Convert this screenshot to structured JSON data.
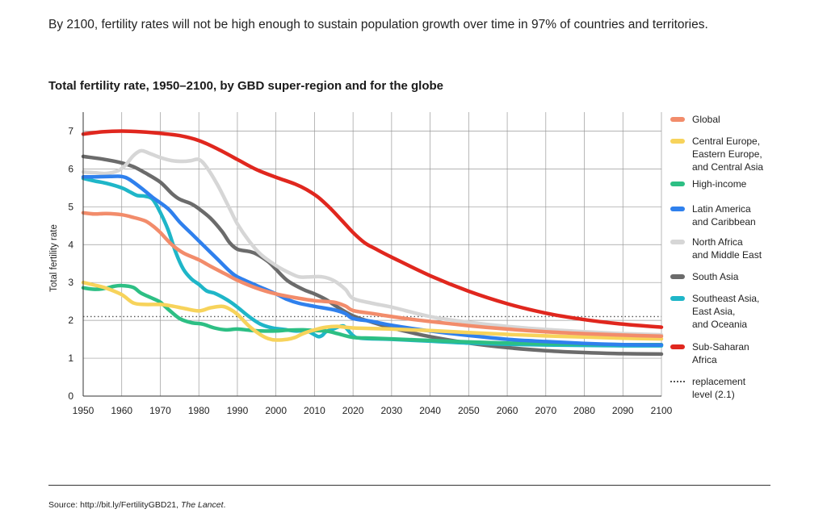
{
  "headline": "By 2100, fertility rates will not be high enough to sustain population growth over time in 97% of countries and territories.",
  "source": {
    "prefix": "Source: http://bit.ly/FertilityGBD21, ",
    "journal": "The Lancet",
    "suffix": "."
  },
  "chart_data": {
    "type": "line",
    "title": "Total fertility rate, 1950–2100, by GBD super-region and for the globe",
    "xlabel": "",
    "ylabel": "Total fertility rate",
    "xlim": [
      1950,
      2100
    ],
    "ylim": [
      0,
      7.5
    ],
    "x_ticks": [
      1950,
      1960,
      1970,
      1980,
      1990,
      2000,
      2010,
      2020,
      2030,
      2040,
      2050,
      2060,
      2070,
      2080,
      2090,
      2100
    ],
    "y_ticks": [
      0,
      1,
      2,
      3,
      4,
      5,
      6,
      7
    ],
    "grid": true,
    "legend_position": "right",
    "reference_line": {
      "y": 2.1,
      "label": "replacement\nlevel (2.1)",
      "style": "dotted",
      "color": "#555555"
    },
    "series": [
      {
        "name": "Global",
        "color": "#f28c6b",
        "points": [
          [
            1950,
            4.84
          ],
          [
            1953,
            4.81
          ],
          [
            1956,
            4.82
          ],
          [
            1960,
            4.79
          ],
          [
            1963,
            4.72
          ],
          [
            1966,
            4.63
          ],
          [
            1968,
            4.5
          ],
          [
            1970,
            4.32
          ],
          [
            1973,
            4.0
          ],
          [
            1976,
            3.78
          ],
          [
            1980,
            3.6
          ],
          [
            1983,
            3.43
          ],
          [
            1987,
            3.22
          ],
          [
            1990,
            3.06
          ],
          [
            1995,
            2.85
          ],
          [
            2000,
            2.7
          ],
          [
            2005,
            2.6
          ],
          [
            2010,
            2.52
          ],
          [
            2015,
            2.48
          ],
          [
            2018,
            2.38
          ],
          [
            2020,
            2.26
          ],
          [
            2025,
            2.18
          ],
          [
            2030,
            2.1
          ],
          [
            2035,
            2.03
          ],
          [
            2040,
            1.97
          ],
          [
            2050,
            1.86
          ],
          [
            2060,
            1.77
          ],
          [
            2070,
            1.7
          ],
          [
            2080,
            1.65
          ],
          [
            2090,
            1.61
          ],
          [
            2100,
            1.58
          ]
        ]
      },
      {
        "name": "Central Europe,\nEastern Europe,\nand Central Asia",
        "color": "#f7d35b",
        "points": [
          [
            1950,
            3.0
          ],
          [
            1953,
            2.93
          ],
          [
            1956,
            2.85
          ],
          [
            1960,
            2.68
          ],
          [
            1963,
            2.46
          ],
          [
            1966,
            2.42
          ],
          [
            1970,
            2.42
          ],
          [
            1973,
            2.38
          ],
          [
            1976,
            2.32
          ],
          [
            1980,
            2.25
          ],
          [
            1983,
            2.33
          ],
          [
            1986,
            2.37
          ],
          [
            1988,
            2.3
          ],
          [
            1990,
            2.16
          ],
          [
            1993,
            1.85
          ],
          [
            1996,
            1.62
          ],
          [
            1998,
            1.52
          ],
          [
            2000,
            1.48
          ],
          [
            2003,
            1.5
          ],
          [
            2005,
            1.55
          ],
          [
            2007,
            1.65
          ],
          [
            2010,
            1.75
          ],
          [
            2013,
            1.82
          ],
          [
            2016,
            1.84
          ],
          [
            2020,
            1.8
          ],
          [
            2030,
            1.77
          ],
          [
            2040,
            1.73
          ],
          [
            2050,
            1.68
          ],
          [
            2060,
            1.63
          ],
          [
            2070,
            1.59
          ],
          [
            2080,
            1.56
          ],
          [
            2090,
            1.53
          ],
          [
            2100,
            1.51
          ]
        ]
      },
      {
        "name": "High-income",
        "color": "#2dbf84",
        "points": [
          [
            1950,
            2.86
          ],
          [
            1953,
            2.82
          ],
          [
            1956,
            2.85
          ],
          [
            1958,
            2.9
          ],
          [
            1960,
            2.92
          ],
          [
            1963,
            2.87
          ],
          [
            1965,
            2.72
          ],
          [
            1968,
            2.58
          ],
          [
            1970,
            2.48
          ],
          [
            1972,
            2.3
          ],
          [
            1975,
            2.05
          ],
          [
            1978,
            1.94
          ],
          [
            1981,
            1.9
          ],
          [
            1984,
            1.8
          ],
          [
            1987,
            1.75
          ],
          [
            1990,
            1.77
          ],
          [
            1993,
            1.74
          ],
          [
            1996,
            1.72
          ],
          [
            2000,
            1.72
          ],
          [
            2003,
            1.74
          ],
          [
            2007,
            1.75
          ],
          [
            2010,
            1.73
          ],
          [
            2013,
            1.72
          ],
          [
            2016,
            1.65
          ],
          [
            2020,
            1.55
          ],
          [
            2025,
            1.53
          ],
          [
            2030,
            1.51
          ],
          [
            2040,
            1.47
          ],
          [
            2050,
            1.43
          ],
          [
            2060,
            1.4
          ],
          [
            2070,
            1.38
          ],
          [
            2080,
            1.37
          ],
          [
            2090,
            1.36
          ],
          [
            2100,
            1.36
          ]
        ]
      },
      {
        "name": "Latin America\nand Caribbean",
        "color": "#2f80ed",
        "points": [
          [
            1950,
            5.79
          ],
          [
            1953,
            5.79
          ],
          [
            1957,
            5.8
          ],
          [
            1960,
            5.8
          ],
          [
            1962,
            5.72
          ],
          [
            1965,
            5.5
          ],
          [
            1968,
            5.25
          ],
          [
            1972,
            4.95
          ],
          [
            1975,
            4.6
          ],
          [
            1978,
            4.3
          ],
          [
            1981,
            4.0
          ],
          [
            1985,
            3.6
          ],
          [
            1988,
            3.3
          ],
          [
            1990,
            3.15
          ],
          [
            1995,
            2.92
          ],
          [
            2000,
            2.7
          ],
          [
            2003,
            2.55
          ],
          [
            2006,
            2.45
          ],
          [
            2010,
            2.37
          ],
          [
            2015,
            2.28
          ],
          [
            2018,
            2.18
          ],
          [
            2020,
            2.05
          ],
          [
            2025,
            1.97
          ],
          [
            2030,
            1.87
          ],
          [
            2040,
            1.72
          ],
          [
            2050,
            1.6
          ],
          [
            2060,
            1.5
          ],
          [
            2070,
            1.44
          ],
          [
            2080,
            1.39
          ],
          [
            2090,
            1.36
          ],
          [
            2100,
            1.35
          ]
        ]
      },
      {
        "name": "North Africa\nand Middle East",
        "color": "#d6d6d6",
        "points": [
          [
            1950,
            5.92
          ],
          [
            1953,
            5.9
          ],
          [
            1956,
            5.88
          ],
          [
            1959,
            5.95
          ],
          [
            1961,
            6.1
          ],
          [
            1963,
            6.35
          ],
          [
            1965,
            6.48
          ],
          [
            1967,
            6.42
          ],
          [
            1970,
            6.3
          ],
          [
            1973,
            6.22
          ],
          [
            1976,
            6.2
          ],
          [
            1978,
            6.22
          ],
          [
            1980,
            6.25
          ],
          [
            1982,
            6.05
          ],
          [
            1985,
            5.55
          ],
          [
            1988,
            4.95
          ],
          [
            1990,
            4.55
          ],
          [
            1993,
            4.1
          ],
          [
            1996,
            3.75
          ],
          [
            2000,
            3.45
          ],
          [
            2003,
            3.28
          ],
          [
            2006,
            3.15
          ],
          [
            2009,
            3.15
          ],
          [
            2012,
            3.15
          ],
          [
            2015,
            3.05
          ],
          [
            2018,
            2.82
          ],
          [
            2020,
            2.58
          ],
          [
            2025,
            2.45
          ],
          [
            2030,
            2.35
          ],
          [
            2040,
            2.1
          ],
          [
            2050,
            1.95
          ],
          [
            2060,
            1.84
          ],
          [
            2070,
            1.76
          ],
          [
            2080,
            1.7
          ],
          [
            2090,
            1.65
          ],
          [
            2100,
            1.62
          ]
        ]
      },
      {
        "name": "South Asia",
        "color": "#6b6b6b",
        "points": [
          [
            1950,
            6.33
          ],
          [
            1955,
            6.26
          ],
          [
            1960,
            6.16
          ],
          [
            1963,
            6.06
          ],
          [
            1966,
            5.9
          ],
          [
            1970,
            5.65
          ],
          [
            1973,
            5.35
          ],
          [
            1975,
            5.2
          ],
          [
            1978,
            5.08
          ],
          [
            1980,
            4.95
          ],
          [
            1983,
            4.7
          ],
          [
            1986,
            4.35
          ],
          [
            1988,
            4.05
          ],
          [
            1990,
            3.88
          ],
          [
            1993,
            3.82
          ],
          [
            1995,
            3.75
          ],
          [
            1998,
            3.55
          ],
          [
            2000,
            3.35
          ],
          [
            2003,
            3.05
          ],
          [
            2007,
            2.82
          ],
          [
            2010,
            2.7
          ],
          [
            2013,
            2.55
          ],
          [
            2016,
            2.35
          ],
          [
            2020,
            2.12
          ],
          [
            2025,
            1.95
          ],
          [
            2030,
            1.8
          ],
          [
            2035,
            1.68
          ],
          [
            2040,
            1.57
          ],
          [
            2050,
            1.4
          ],
          [
            2060,
            1.28
          ],
          [
            2070,
            1.2
          ],
          [
            2080,
            1.15
          ],
          [
            2090,
            1.12
          ],
          [
            2100,
            1.11
          ]
        ]
      },
      {
        "name": "Southeast Asia,\nEast Asia,\nand Oceania",
        "color": "#1fb6c8",
        "points": [
          [
            1950,
            5.75
          ],
          [
            1953,
            5.68
          ],
          [
            1956,
            5.62
          ],
          [
            1960,
            5.5
          ],
          [
            1962,
            5.4
          ],
          [
            1964,
            5.3
          ],
          [
            1966,
            5.28
          ],
          [
            1968,
            5.2
          ],
          [
            1970,
            4.85
          ],
          [
            1972,
            4.4
          ],
          [
            1974,
            3.8
          ],
          [
            1976,
            3.35
          ],
          [
            1978,
            3.1
          ],
          [
            1980,
            2.95
          ],
          [
            1982,
            2.78
          ],
          [
            1984,
            2.72
          ],
          [
            1986,
            2.62
          ],
          [
            1988,
            2.5
          ],
          [
            1990,
            2.35
          ],
          [
            1993,
            2.1
          ],
          [
            1996,
            1.9
          ],
          [
            1999,
            1.8
          ],
          [
            2002,
            1.76
          ],
          [
            2005,
            1.72
          ],
          [
            2008,
            1.72
          ],
          [
            2010,
            1.62
          ],
          [
            2011,
            1.57
          ],
          [
            2012,
            1.6
          ],
          [
            2013,
            1.7
          ],
          [
            2015,
            1.78
          ],
          [
            2017,
            1.85
          ],
          [
            2018,
            1.82
          ],
          [
            2020,
            1.6
          ],
          [
            2022,
            1.53
          ],
          [
            2030,
            1.5
          ],
          [
            2040,
            1.45
          ],
          [
            2050,
            1.4
          ],
          [
            2060,
            1.37
          ],
          [
            2070,
            1.35
          ],
          [
            2080,
            1.34
          ],
          [
            2090,
            1.33
          ],
          [
            2100,
            1.33
          ]
        ]
      },
      {
        "name": "Sub-Saharan\nAfrica",
        "color": "#e0271e",
        "points": [
          [
            1950,
            6.92
          ],
          [
            1955,
            6.98
          ],
          [
            1960,
            7.0
          ],
          [
            1965,
            6.98
          ],
          [
            1970,
            6.94
          ],
          [
            1975,
            6.88
          ],
          [
            1980,
            6.75
          ],
          [
            1985,
            6.52
          ],
          [
            1990,
            6.25
          ],
          [
            1995,
            5.98
          ],
          [
            2000,
            5.78
          ],
          [
            2005,
            5.6
          ],
          [
            2008,
            5.45
          ],
          [
            2011,
            5.25
          ],
          [
            2014,
            4.97
          ],
          [
            2017,
            4.65
          ],
          [
            2020,
            4.32
          ],
          [
            2023,
            4.05
          ],
          [
            2026,
            3.88
          ],
          [
            2030,
            3.67
          ],
          [
            2040,
            3.18
          ],
          [
            2050,
            2.77
          ],
          [
            2060,
            2.44
          ],
          [
            2070,
            2.19
          ],
          [
            2080,
            2.02
          ],
          [
            2090,
            1.9
          ],
          [
            2100,
            1.82
          ]
        ]
      }
    ]
  }
}
